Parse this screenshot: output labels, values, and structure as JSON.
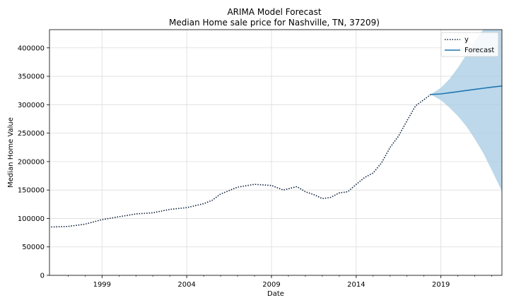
{
  "chart_data": {
    "type": "line",
    "title": "ARIMA Model Forecast",
    "subtitle": "Median Home sale price for Nashville, TN, 37209)",
    "xlabel": "Date",
    "ylabel": "Median Home Value",
    "xlim": [
      1995.9,
      2022.6
    ],
    "ylim": [
      0,
      432000
    ],
    "x_ticks": [
      "1999",
      "2004",
      "2009",
      "2014",
      "2019"
    ],
    "x_tick_values": [
      1999,
      2004,
      2009,
      2014,
      2019
    ],
    "y_ticks": [
      "0",
      "50000",
      "100000",
      "150000",
      "200000",
      "250000",
      "300000",
      "350000",
      "400000"
    ],
    "y_tick_values": [
      0,
      50000,
      100000,
      150000,
      200000,
      250000,
      300000,
      350000,
      400000
    ],
    "grid": true,
    "legend_position": "top-right",
    "legend": [
      "y",
      "Forecast"
    ],
    "colors": {
      "observed": "#0b1f3a",
      "forecast": "#1f77b4",
      "ci": "#a6cbe3"
    },
    "series": [
      {
        "name": "y",
        "style": "dotted",
        "x": [
          1996.0,
          1997.0,
          1998.0,
          1999.0,
          2000.0,
          2001.0,
          2002.0,
          2003.0,
          2004.0,
          2005.0,
          2005.5,
          2006.0,
          2007.0,
          2008.0,
          2009.0,
          2009.7,
          2010.5,
          2011.0,
          2011.5,
          2012.0,
          2012.5,
          2013.0,
          2013.5,
          2014.0,
          2014.5,
          2015.0,
          2015.5,
          2016.0,
          2016.5,
          2017.0,
          2017.5,
          2018.0,
          2018.4
        ],
        "values": [
          85000,
          86000,
          90000,
          98000,
          103000,
          108000,
          110000,
          116000,
          119000,
          126000,
          132000,
          143000,
          155000,
          160000,
          158000,
          150000,
          156000,
          147000,
          142000,
          135000,
          137000,
          145000,
          147000,
          160000,
          172000,
          180000,
          198000,
          225000,
          245000,
          272000,
          298000,
          309000,
          318000
        ]
      },
      {
        "name": "Forecast",
        "style": "solid",
        "x": [
          2018.4,
          2019.0,
          2019.5,
          2020.0,
          2020.5,
          2021.0,
          2021.5,
          2022.0,
          2022.6
        ],
        "values": [
          318000,
          319000,
          321000,
          323000,
          325000,
          327000,
          329000,
          331000,
          333000
        ]
      }
    ],
    "confidence_interval": {
      "x": [
        2018.4,
        2019.0,
        2019.5,
        2020.0,
        2020.5,
        2021.0,
        2021.5,
        2022.0,
        2022.6
      ],
      "lower": [
        318000,
        308000,
        295000,
        280000,
        262000,
        240000,
        215000,
        185000,
        148000
      ],
      "upper": [
        318000,
        330000,
        345000,
        365000,
        388000,
        412000,
        432000,
        432000,
        432000
      ]
    }
  }
}
